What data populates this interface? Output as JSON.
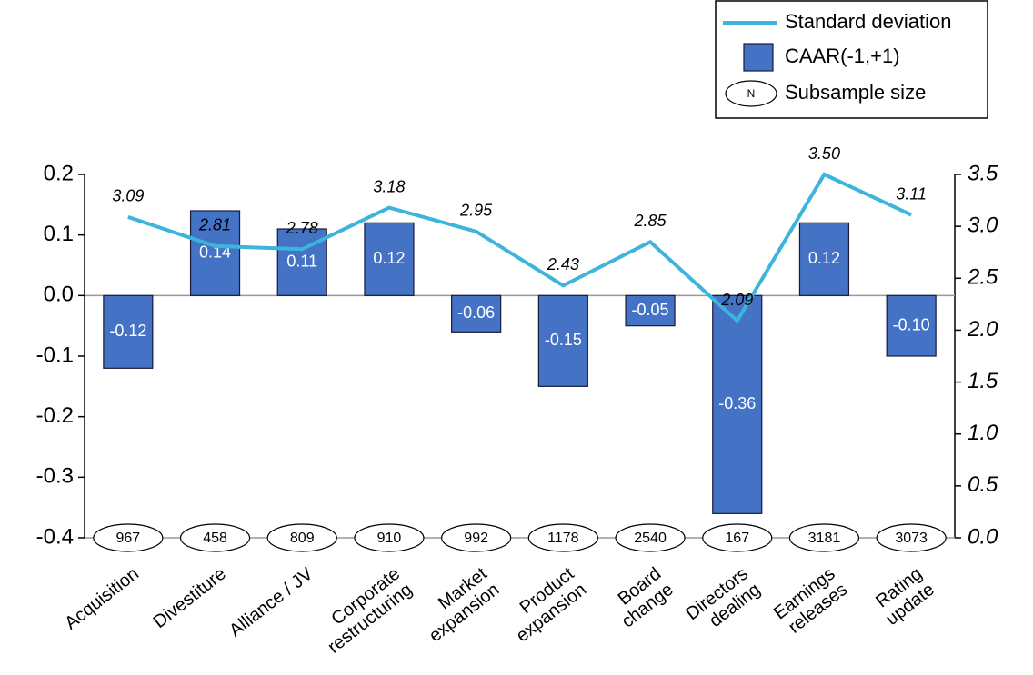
{
  "chart_data": {
    "type": "combo",
    "categories": [
      "Acquisition",
      "Divestiture",
      "Alliance / JV",
      "Corporate\nrestructuring",
      "Market\nexpansion",
      "Product\nexpansion",
      "Board\nchange",
      "Directors\ndealing",
      "Earnings\nreleases",
      "Rating\nupdate"
    ],
    "series": [
      {
        "name": "Standard deviation",
        "type": "line",
        "axis": "y2",
        "color": "#3cb4dc",
        "values": [
          3.09,
          2.81,
          2.78,
          3.18,
          2.95,
          2.43,
          2.85,
          2.09,
          3.5,
          3.11
        ],
        "value_labels": [
          "3.09",
          "2.81",
          "2.78",
          "3.18",
          "2.95",
          "2.43",
          "2.85",
          "2.09",
          "3.50",
          "3.11"
        ]
      },
      {
        "name": "CAAR(-1,+1)",
        "type": "bar",
        "color": "#4472c4",
        "values": [
          -0.12,
          0.14,
          0.11,
          0.12,
          -0.06,
          -0.15,
          -0.05,
          -0.36,
          0.12,
          -0.1
        ],
        "value_labels": [
          "-0.12",
          "0.14",
          "0.11",
          "0.12",
          "-0.06",
          "-0.15",
          "-0.05",
          "-0.36",
          "0.12",
          "-0.10"
        ]
      }
    ],
    "subsample": {
      "name": "Subsample size",
      "symbol": "N",
      "values": [
        967,
        458,
        809,
        910,
        992,
        1178,
        2540,
        167,
        3181,
        3073
      ]
    },
    "ylim": [
      -0.4,
      0.2
    ],
    "yticks": [
      -0.4,
      -0.3,
      -0.2,
      -0.1,
      {
        "value": 0,
        "label": "0.0"
      },
      0.1,
      0.2
    ],
    "y2lim": [
      0,
      3.5
    ],
    "y2ticks": [
      {
        "value": 0,
        "label": "0.0"
      },
      0.5,
      {
        "value": 1,
        "label": "1.0"
      },
      1.5,
      {
        "value": 2,
        "label": "2.0"
      },
      2.5,
      {
        "value": 3,
        "label": "3.0"
      },
      3.5
    ],
    "legend": "top-right"
  }
}
